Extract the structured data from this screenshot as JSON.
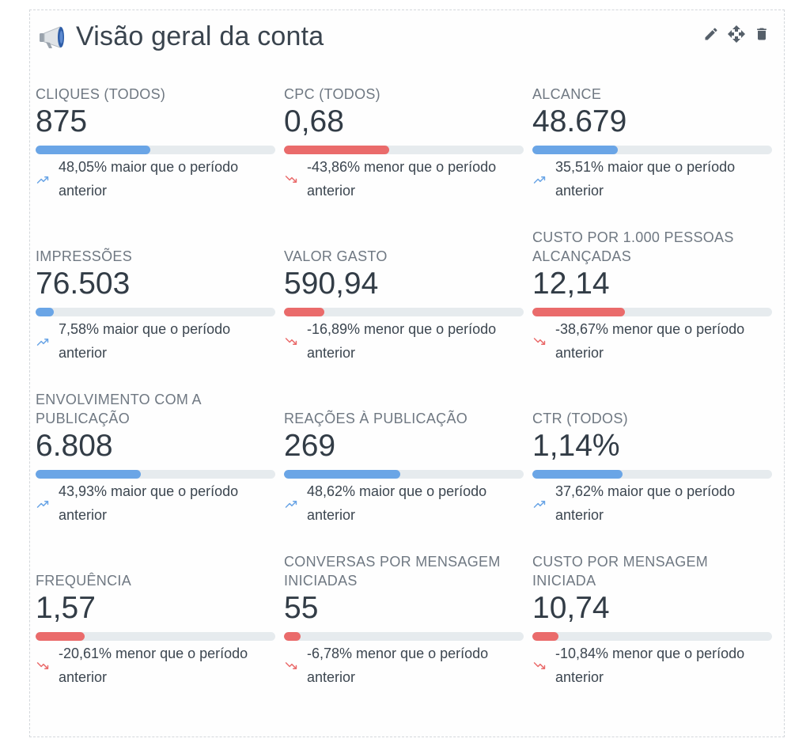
{
  "widget": {
    "title": "Visão geral da conta",
    "icon": "megaphone-icon",
    "actions": [
      {
        "name": "edit-icon"
      },
      {
        "name": "move-icon"
      },
      {
        "name": "delete-icon"
      }
    ]
  },
  "colors": {
    "up": "#6aa5e6",
    "down": "#ea6b6b",
    "track": "#e6ebee"
  },
  "metrics": [
    {
      "label": "CLIQUES (TODOS)",
      "value": "875",
      "change": "48,05% maior que o período anterior",
      "direction": "up",
      "level": 0.48
    },
    {
      "label": "CPC (TODOS)",
      "value": "0,68",
      "change": "-43,86% menor que o período anterior",
      "direction": "down",
      "level": 0.44
    },
    {
      "label": "ALCANCE",
      "value": "48.679",
      "change": "35,51% maior que o período anterior",
      "direction": "up",
      "level": 0.355
    },
    {
      "label": "IMPRESSÕES",
      "value": "76.503",
      "change": "7,58% maior que o período anterior",
      "direction": "up",
      "level": 0.076
    },
    {
      "label": "VALOR GASTO",
      "value": "590,94",
      "change": "-16,89% menor que o período anterior",
      "direction": "down",
      "level": 0.169
    },
    {
      "label": "CUSTO POR 1.000 PESSOAS ALCANÇADAS",
      "value": "12,14",
      "change": "-38,67% menor que o período anterior",
      "direction": "down",
      "level": 0.387
    },
    {
      "label": "ENVOLVIMENTO COM A PUBLICAÇÃO",
      "value": "6.808",
      "change": "43,93% maior que o período anterior",
      "direction": "up",
      "level": 0.439
    },
    {
      "label": "REAÇÕES À PUBLICAÇÃO",
      "value": "269",
      "change": "48,62% maior que o período anterior",
      "direction": "up",
      "level": 0.486
    },
    {
      "label": "CTR (TODOS)",
      "value": "1,14%",
      "change": "37,62% maior que o período anterior",
      "direction": "up",
      "level": 0.376
    },
    {
      "label": "FREQUÊNCIA",
      "value": "1,57",
      "change": "-20,61% menor que o período anterior",
      "direction": "down",
      "level": 0.206
    },
    {
      "label": "CONVERSAS POR MENSAGEM INICIADAS",
      "value": "55",
      "change": "-6,78% menor que o período anterior",
      "direction": "down",
      "level": 0.068
    },
    {
      "label": "CUSTO POR MENSAGEM INICIADA",
      "value": "10,74",
      "change": "-10,84% menor que o período anterior",
      "direction": "down",
      "level": 0.108
    }
  ]
}
